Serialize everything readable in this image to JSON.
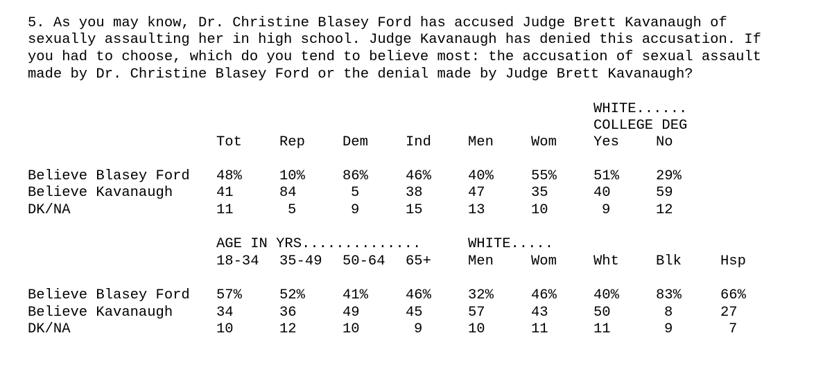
{
  "question": {
    "lines": [
      "5. As you may know, Dr. Christine Blasey Ford has accused Judge Brett Kavanaugh of",
      "sexually assaulting her in high school. Judge Kavanaugh has denied this accusation. If",
      "you had to choose, which do you tend to believe most: the accusation of sexual assault",
      "made by Dr. Christine Blasey Ford or the denial made by Judge Brett Kavanaugh?"
    ]
  },
  "table1": {
    "group_header_1": "WHITE......",
    "group_header_2": "COLLEGE DEG",
    "columns": [
      "Tot",
      "Rep",
      "Dem",
      "Ind",
      "Men",
      "Wom",
      "Yes",
      "No"
    ],
    "rows": [
      {
        "label": "Believe Blasey Ford",
        "values": [
          "48%",
          "10%",
          "86%",
          "46%",
          "40%",
          "55%",
          "51%",
          "29%"
        ]
      },
      {
        "label": "Believe Kavanaugh",
        "values": [
          "41",
          "84",
          "5",
          "38",
          "47",
          "35",
          "40",
          "59"
        ]
      },
      {
        "label": "DK/NA",
        "values": [
          "11",
          "5",
          "9",
          "15",
          "13",
          "10",
          "9",
          "12"
        ]
      }
    ]
  },
  "table2": {
    "group_header_age": "AGE IN YRS..............",
    "group_header_white": "WHITE.....",
    "columns": [
      "18-34",
      "35-49",
      "50-64",
      "65+",
      "Men",
      "Wom",
      "Wht",
      "Blk",
      "Hsp"
    ],
    "rows": [
      {
        "label": "Believe Blasey Ford",
        "values": [
          "57%",
          "52%",
          "41%",
          "46%",
          "32%",
          "46%",
          "40%",
          "83%",
          "66%"
        ]
      },
      {
        "label": "Believe Kavanaugh",
        "values": [
          "34",
          "36",
          "49",
          "45",
          "57",
          "43",
          "50",
          "8",
          "27"
        ]
      },
      {
        "label": "DK/NA",
        "values": [
          "10",
          "12",
          "10",
          "9",
          "10",
          "11",
          "11",
          "9",
          "7"
        ]
      }
    ]
  }
}
